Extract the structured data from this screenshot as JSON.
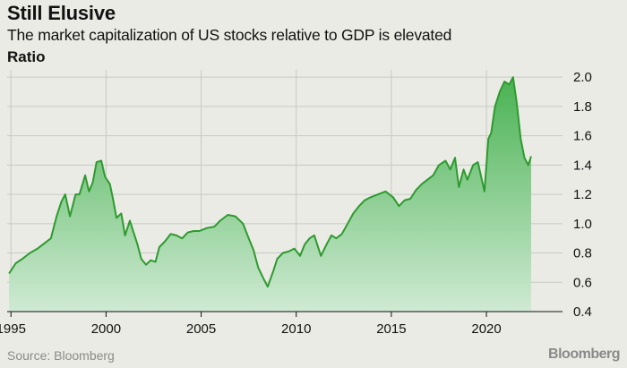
{
  "chart_data": {
    "type": "area",
    "title": "Still Elusive",
    "subtitle": "The market capitalization of US stocks relative to GDP is elevated",
    "ylabel": "Ratio",
    "source": "Source: Bloomberg",
    "brand": "Bloomberg",
    "xlim": [
      1994.8,
      2024.0
    ],
    "ylim": [
      0.4,
      2.05
    ],
    "x_ticks": [
      1995,
      2000,
      2005,
      2010,
      2015,
      2020
    ],
    "y_ticks": [
      0.4,
      0.6,
      0.8,
      1.0,
      1.2,
      1.4,
      1.6,
      1.8,
      2.0
    ],
    "y_tick_labels": [
      "0.4",
      "0.6",
      "0.8",
      "1.0",
      "1.2",
      "1.4",
      "1.6",
      "1.8",
      "2.0"
    ],
    "grid": true,
    "line_color": "#2e9a2e",
    "fill_color_top": "#49b252",
    "fill_color_bottom": "#cfead3",
    "series": [
      {
        "x": [
          1994.9,
          1995.25,
          1995.6,
          1996.0,
          1996.4,
          1996.8,
          1997.1,
          1997.4,
          1997.65,
          1997.85,
          1998.1,
          1998.4,
          1998.6,
          1998.9,
          1999.1,
          1999.3,
          1999.5,
          1999.75,
          1999.95,
          2000.2,
          2000.35,
          2000.55,
          2000.8,
          2001.0,
          2001.25,
          2001.4,
          2001.65,
          2001.85,
          2002.1,
          2002.35,
          2002.6,
          2002.8,
          2003.1,
          2003.4,
          2003.7,
          2004.0,
          2004.3,
          2004.6,
          2004.9,
          2005.3,
          2005.7,
          2006.0,
          2006.4,
          2006.8,
          2007.2,
          2007.5,
          2007.75,
          2008.0,
          2008.3,
          2008.5,
          2008.8,
          2009.0,
          2009.3,
          2009.6,
          2009.9,
          2010.2,
          2010.45,
          2010.7,
          2010.95,
          2011.3,
          2011.6,
          2011.85,
          2012.1,
          2012.4,
          2012.7,
          2013.0,
          2013.3,
          2013.6,
          2013.9,
          2014.3,
          2014.7,
          2015.1,
          2015.4,
          2015.7,
          2016.0,
          2016.3,
          2016.6,
          2016.9,
          2017.2,
          2017.5,
          2017.85,
          2018.1,
          2018.35,
          2018.55,
          2018.8,
          2019.0,
          2019.3,
          2019.55,
          2019.9,
          2020.1,
          2020.25,
          2020.45,
          2020.7,
          2020.95,
          2021.2,
          2021.4,
          2021.6,
          2021.8,
          2022.0,
          2022.2,
          2022.35
        ],
        "values": [
          0.66,
          0.73,
          0.76,
          0.8,
          0.83,
          0.87,
          0.9,
          1.05,
          1.15,
          1.2,
          1.05,
          1.2,
          1.2,
          1.33,
          1.22,
          1.28,
          1.42,
          1.43,
          1.32,
          1.27,
          1.18,
          1.04,
          1.07,
          0.92,
          1.02,
          0.96,
          0.86,
          0.76,
          0.72,
          0.75,
          0.74,
          0.84,
          0.88,
          0.93,
          0.92,
          0.9,
          0.94,
          0.95,
          0.95,
          0.97,
          0.98,
          1.02,
          1.06,
          1.05,
          1.0,
          0.9,
          0.82,
          0.7,
          0.62,
          0.57,
          0.68,
          0.76,
          0.8,
          0.81,
          0.83,
          0.78,
          0.86,
          0.9,
          0.92,
          0.78,
          0.86,
          0.92,
          0.9,
          0.93,
          1.0,
          1.07,
          1.12,
          1.16,
          1.18,
          1.2,
          1.22,
          1.18,
          1.12,
          1.16,
          1.17,
          1.23,
          1.27,
          1.3,
          1.33,
          1.4,
          1.43,
          1.37,
          1.45,
          1.25,
          1.37,
          1.3,
          1.4,
          1.42,
          1.22,
          1.58,
          1.62,
          1.8,
          1.9,
          1.97,
          1.95,
          2.0,
          1.82,
          1.58,
          1.45,
          1.4,
          1.46
        ]
      }
    ]
  }
}
